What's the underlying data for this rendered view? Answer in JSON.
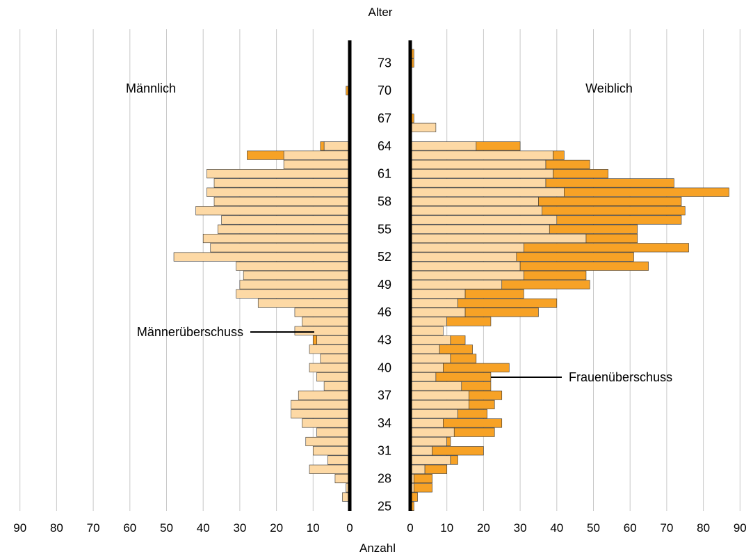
{
  "chart_data": {
    "type": "bar",
    "subtype": "population-pyramid",
    "title": "",
    "xlabel": "Anzahl",
    "ylabel": "Alter",
    "xlim": [
      0,
      90
    ],
    "x_ticks": [
      0,
      10,
      20,
      30,
      40,
      50,
      60,
      70,
      80,
      90
    ],
    "grid": true,
    "ages": [
      25,
      26,
      27,
      28,
      29,
      30,
      31,
      32,
      33,
      34,
      35,
      36,
      37,
      38,
      39,
      40,
      41,
      42,
      43,
      44,
      45,
      46,
      47,
      48,
      49,
      50,
      51,
      52,
      53,
      54,
      55,
      56,
      57,
      58,
      59,
      60,
      61,
      62,
      63,
      64,
      65,
      66,
      67,
      68,
      69,
      70,
      71,
      72,
      73,
      74
    ],
    "age_tick_labels": [
      "25",
      "28",
      "31",
      "34",
      "37",
      "40",
      "43",
      "46",
      "49",
      "52",
      "55",
      "58",
      "61",
      "64",
      "67",
      "70",
      "73"
    ],
    "sides": {
      "male": {
        "label": "Männlich",
        "values": [
          0,
          2,
          1,
          4,
          11,
          6,
          10,
          12,
          9,
          13,
          16,
          16,
          14,
          7,
          9,
          11,
          8,
          11,
          10,
          15,
          13,
          15,
          25,
          31,
          30,
          29,
          31,
          48,
          38,
          40,
          36,
          35,
          42,
          37,
          39,
          37,
          39,
          18,
          28,
          8,
          0,
          0,
          0,
          0,
          0,
          1,
          0,
          0,
          0,
          0
        ],
        "base_values": [
          0,
          2,
          1,
          4,
          11,
          6,
          10,
          12,
          9,
          13,
          16,
          16,
          14,
          7,
          9,
          11,
          8,
          11,
          9,
          15,
          13,
          15,
          25,
          31,
          30,
          29,
          31,
          48,
          38,
          40,
          36,
          35,
          42,
          37,
          39,
          37,
          39,
          18,
          18,
          7,
          0,
          0,
          0,
          0,
          0,
          0,
          0,
          0,
          0,
          0
        ]
      },
      "female": {
        "label": "Weiblich",
        "values": [
          1,
          2,
          6,
          6,
          10,
          13,
          20,
          11,
          23,
          25,
          21,
          23,
          25,
          22,
          22,
          27,
          18,
          17,
          15,
          9,
          22,
          35,
          40,
          31,
          49,
          48,
          65,
          61,
          76,
          62,
          62,
          74,
          75,
          74,
          87,
          72,
          54,
          49,
          42,
          30,
          0,
          7,
          1,
          0,
          0,
          0,
          0,
          0,
          1,
          1
        ],
        "base_values": [
          0,
          0,
          1,
          1,
          4,
          11,
          6,
          10,
          12,
          9,
          13,
          16,
          16,
          14,
          7,
          9,
          11,
          8,
          11,
          9,
          10,
          15,
          13,
          15,
          25,
          31,
          30,
          29,
          31,
          48,
          38,
          40,
          36,
          35,
          42,
          37,
          39,
          37,
          39,
          18,
          0,
          7,
          0,
          0,
          0,
          0,
          0,
          0,
          0,
          0
        ]
      }
    },
    "series": [
      {
        "name": "",
        "role": "common",
        "color": "#fdd9a5"
      },
      {
        "name": "",
        "role": "surplus",
        "color": "#f7a226"
      }
    ],
    "annotations": [
      {
        "text": "Männerüberschuss",
        "side": "male",
        "age": 44
      },
      {
        "text": "Frauenüberschuss",
        "side": "female",
        "age": 39
      }
    ]
  }
}
